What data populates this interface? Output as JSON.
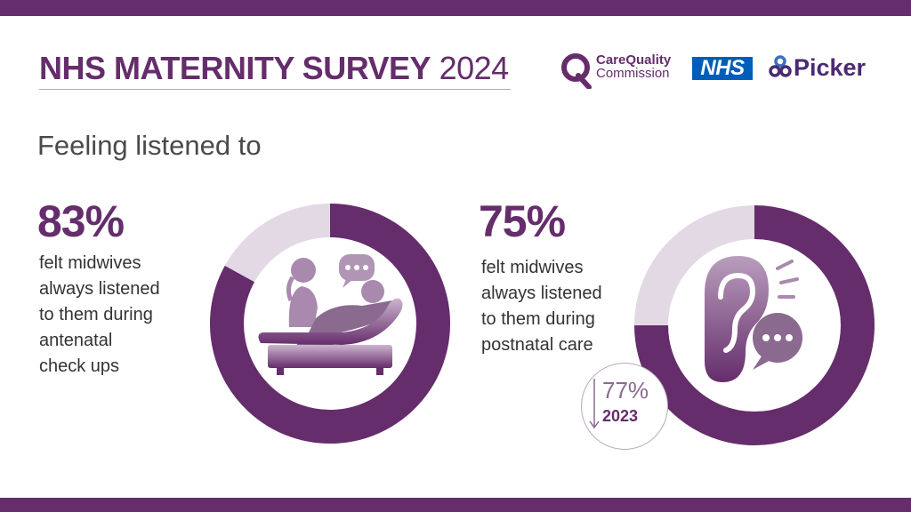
{
  "header": {
    "title_bold": "NHS MATERNITY SURVEY",
    "title_year": "2024"
  },
  "logos": {
    "cqc_line1": "CareQuality",
    "cqc_line2": "Commission",
    "nhs": "NHS",
    "picker": "Picker"
  },
  "section": {
    "subtitle": "Feeling listened to"
  },
  "colors": {
    "primary": "#652d6b",
    "remainder": "#e3d9e5",
    "nhs_blue": "#005eb8",
    "band": "#652d6b"
  },
  "icons": [
    "midwife-patient-icon",
    "speech-bubble-icon",
    "ear-icon",
    "down-arrow-icon"
  ],
  "chart_data": [
    {
      "type": "pie",
      "variant": "donut",
      "big_label": "83%",
      "value": 83,
      "max": 100,
      "description": "felt midwives\nalways listened\nto them during\nantenatal\ncheck ups",
      "icon": "midwife-patient-icon"
    },
    {
      "type": "pie",
      "variant": "donut",
      "big_label": "75%",
      "value": 75,
      "max": 100,
      "description": "felt midwives\nalways listened\nto them during\npostnatal care",
      "icon": "ear-icon",
      "comparison": {
        "label": "77%",
        "value": 77,
        "year": "2023",
        "direction": "down"
      }
    }
  ]
}
